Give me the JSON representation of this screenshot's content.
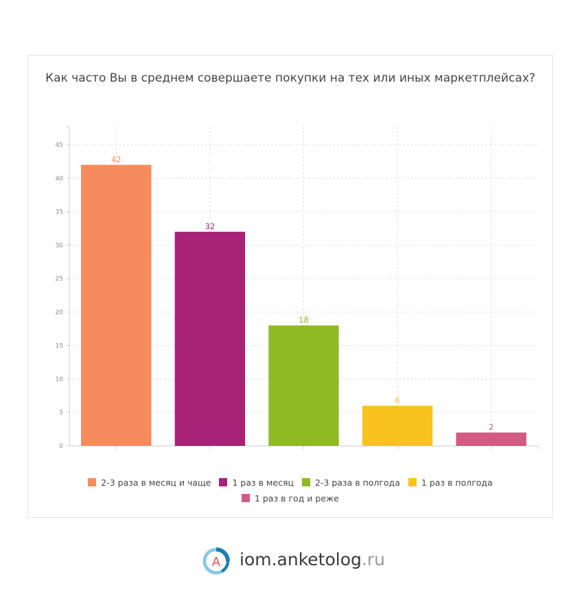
{
  "colors": {
    "series": [
      "#f68c5e",
      "#a82277",
      "#8fba24",
      "#f8c31f",
      "#d15b82"
    ],
    "axis": "#cccccc",
    "grid": "#dddddd",
    "tick_text": "#888888",
    "logo_blue": "#1e7fb0",
    "logo_light": "#8dc8e3",
    "logo_letter": "#e0504a"
  },
  "chart_data": {
    "type": "bar",
    "title": "Как часто Вы в среднем совершаете покупки на тех или иных маркетплейсах?",
    "categories": [
      "2-3 раза в месяц и чаще",
      "1 раз в месяц",
      "2-3 раза в полгода",
      "1 раз в полгода",
      "1 раз в год и реже"
    ],
    "values": [
      42,
      32,
      18,
      6,
      2
    ],
    "ylim": [
      0,
      45
    ],
    "yticks": [
      "0",
      "5",
      "10",
      "15",
      "20",
      "25",
      "30",
      "35",
      "40",
      "45"
    ],
    "xlabel": "",
    "ylabel": "",
    "grid": true,
    "legend": "bottom"
  },
  "logo": {
    "letter": "A",
    "name": "iom.anketolog",
    "suffix": ".ru",
    "icon": "anketolog-logo-icon"
  }
}
